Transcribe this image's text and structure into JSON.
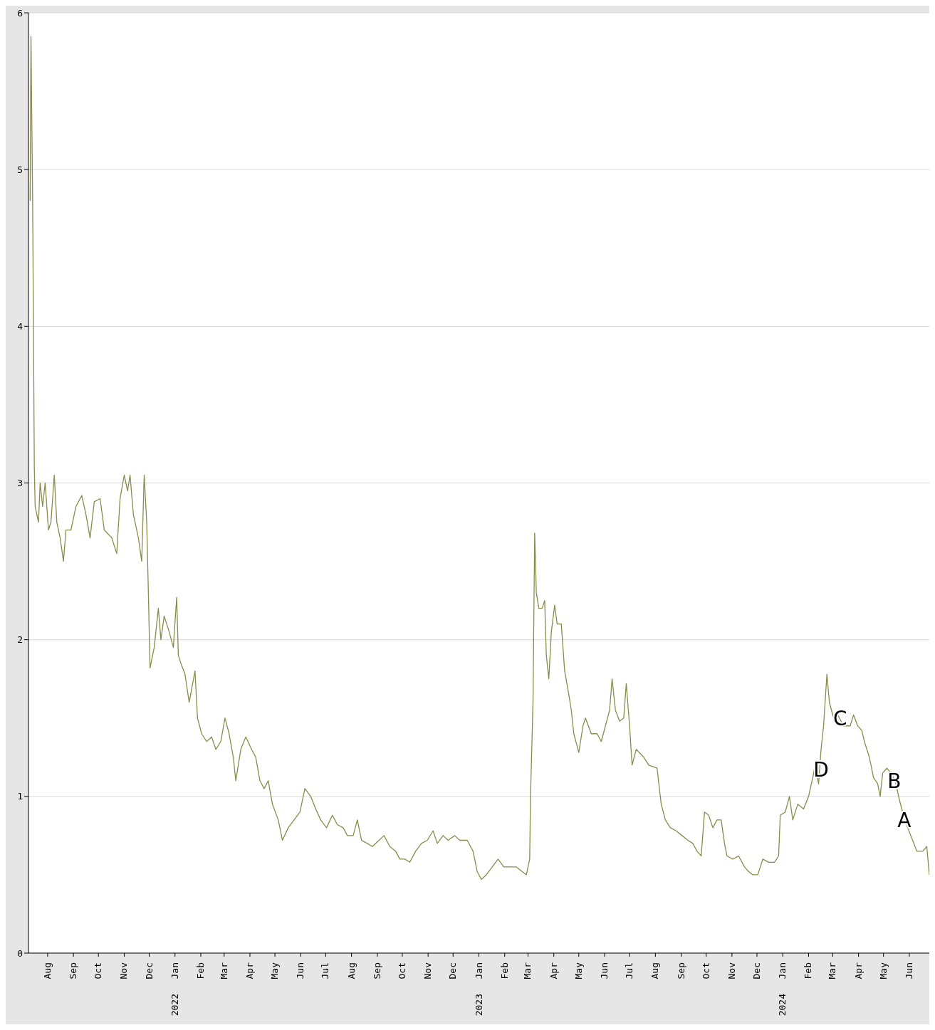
{
  "chart_data": {
    "type": "line",
    "color": "#8b8b4b",
    "grid": "y",
    "marker": "none",
    "line_style": "solid",
    "xlim": [
      "2021-07-09",
      "2024-06-25"
    ],
    "xticks": [
      {
        "value": "2021-08-01",
        "label": "Aug"
      },
      {
        "value": "2021-09-01",
        "label": "Sep"
      },
      {
        "value": "2021-10-01",
        "label": "Oct"
      },
      {
        "value": "2021-11-01",
        "label": "Nov"
      },
      {
        "value": "2021-12-01",
        "label": "Dec"
      },
      {
        "value": "2022-01-01",
        "label": "Jan"
      },
      {
        "value": "2022-02-01",
        "label": "Feb"
      },
      {
        "value": "2022-03-01",
        "label": "Mar"
      },
      {
        "value": "2022-04-01",
        "label": "Apr"
      },
      {
        "value": "2022-05-01",
        "label": "May"
      },
      {
        "value": "2022-06-01",
        "label": "Jun"
      },
      {
        "value": "2022-07-01",
        "label": "Jul"
      },
      {
        "value": "2022-08-01",
        "label": "Aug"
      },
      {
        "value": "2022-09-01",
        "label": "Sep"
      },
      {
        "value": "2022-10-01",
        "label": "Oct"
      },
      {
        "value": "2022-11-01",
        "label": "Nov"
      },
      {
        "value": "2022-12-01",
        "label": "Dec"
      },
      {
        "value": "2023-01-01",
        "label": "Jan"
      },
      {
        "value": "2023-02-01",
        "label": "Feb"
      },
      {
        "value": "2023-03-01",
        "label": "Mar"
      },
      {
        "value": "2023-04-01",
        "label": "Apr"
      },
      {
        "value": "2023-05-01",
        "label": "May"
      },
      {
        "value": "2023-06-01",
        "label": "Jun"
      },
      {
        "value": "2023-07-01",
        "label": "Jul"
      },
      {
        "value": "2023-08-01",
        "label": "Aug"
      },
      {
        "value": "2023-09-01",
        "label": "Sep"
      },
      {
        "value": "2023-10-01",
        "label": "Oct"
      },
      {
        "value": "2023-11-01",
        "label": "Nov"
      },
      {
        "value": "2023-12-01",
        "label": "Dec"
      },
      {
        "value": "2024-01-01",
        "label": "Jan"
      },
      {
        "value": "2024-02-01",
        "label": "Feb"
      },
      {
        "value": "2024-03-01",
        "label": "Mar"
      },
      {
        "value": "2024-04-01",
        "label": "Apr"
      },
      {
        "value": "2024-05-01",
        "label": "May"
      },
      {
        "value": "2024-06-01",
        "label": "Jun"
      }
    ],
    "ylim": [
      0,
      6
    ],
    "yticks": [
      0,
      1,
      2,
      3,
      4,
      5,
      6
    ],
    "x": [
      "2021-07-11",
      "2021-07-12",
      "2021-07-14",
      "2021-07-16",
      "2021-07-17",
      "2021-07-21",
      "2021-07-23",
      "2021-07-26",
      "2021-07-29",
      "2021-08-02",
      "2021-08-05",
      "2021-08-09",
      "2021-08-12",
      "2021-08-16",
      "2021-08-20",
      "2021-08-23",
      "2021-08-29",
      "2021-09-04",
      "2021-09-11",
      "2021-09-16",
      "2021-09-21",
      "2021-09-26",
      "2021-10-03",
      "2021-10-08",
      "2021-10-17",
      "2021-10-23",
      "2021-10-27",
      "2021-11-01",
      "2021-11-05",
      "2021-11-08",
      "2021-11-12",
      "2021-11-18",
      "2021-11-22",
      "2021-11-25",
      "2021-11-28",
      "2021-11-30",
      "2021-12-02",
      "2021-12-07",
      "2021-12-12",
      "2021-12-15",
      "2021-12-19",
      "2021-12-25",
      "2021-12-30",
      "2022-01-03",
      "2022-01-05",
      "2022-01-08",
      "2022-01-13",
      "2022-01-18",
      "2022-01-25",
      "2022-01-28",
      "2022-02-02",
      "2022-02-08",
      "2022-02-14",
      "2022-02-19",
      "2022-02-25",
      "2022-03-02",
      "2022-03-07",
      "2022-03-12",
      "2022-03-15",
      "2022-03-21",
      "2022-03-27",
      "2022-04-03",
      "2022-04-08",
      "2022-04-13",
      "2022-04-18",
      "2022-04-23",
      "2022-04-28",
      "2022-05-05",
      "2022-05-10",
      "2022-05-17",
      "2022-05-24",
      "2022-05-31",
      "2022-06-06",
      "2022-06-13",
      "2022-06-19",
      "2022-06-25",
      "2022-07-02",
      "2022-07-09",
      "2022-07-15",
      "2022-07-22",
      "2022-07-27",
      "2022-08-03",
      "2022-08-08",
      "2022-08-13",
      "2022-08-20",
      "2022-08-26",
      "2022-09-03",
      "2022-09-09",
      "2022-09-16",
      "2022-09-23",
      "2022-09-28",
      "2022-10-04",
      "2022-10-10",
      "2022-10-17",
      "2022-10-24",
      "2022-10-31",
      "2022-11-07",
      "2022-11-12",
      "2022-11-19",
      "2022-11-25",
      "2022-12-03",
      "2022-12-09",
      "2022-12-18",
      "2022-12-25",
      "2022-12-30",
      "2023-01-04",
      "2023-01-10",
      "2023-01-17",
      "2023-01-24",
      "2023-01-31",
      "2023-02-07",
      "2023-02-15",
      "2023-02-22",
      "2023-02-27",
      "2023-03-03",
      "2023-03-04",
      "2023-03-07",
      "2023-03-09",
      "2023-03-11",
      "2023-03-14",
      "2023-03-18",
      "2023-03-21",
      "2023-03-23",
      "2023-03-26",
      "2023-03-29",
      "2023-04-02",
      "2023-04-05",
      "2023-04-10",
      "2023-04-14",
      "2023-04-19",
      "2023-04-22",
      "2023-04-25",
      "2023-05-01",
      "2023-05-06",
      "2023-05-09",
      "2023-05-16",
      "2023-05-23",
      "2023-05-28",
      "2023-06-02",
      "2023-06-07",
      "2023-06-10",
      "2023-06-14",
      "2023-06-19",
      "2023-06-24",
      "2023-06-27",
      "2023-07-01",
      "2023-07-04",
      "2023-07-09",
      "2023-07-18",
      "2023-07-24",
      "2023-08-03",
      "2023-08-08",
      "2023-08-13",
      "2023-08-19",
      "2023-08-26",
      "2023-09-02",
      "2023-09-09",
      "2023-09-15",
      "2023-09-20",
      "2023-09-25",
      "2023-09-29",
      "2023-10-04",
      "2023-10-09",
      "2023-10-14",
      "2023-10-19",
      "2023-10-23",
      "2023-10-26",
      "2023-11-02",
      "2023-11-09",
      "2023-11-16",
      "2023-11-21",
      "2023-11-26",
      "2023-12-02",
      "2023-12-08",
      "2023-12-15",
      "2023-12-22",
      "2023-12-27",
      "2023-12-29",
      "2024-01-04",
      "2024-01-09",
      "2024-01-13",
      "2024-01-19",
      "2024-01-26",
      "2024-02-01",
      "2024-02-06",
      "2024-02-09",
      "2024-02-13",
      "2024-02-16",
      "2024-02-19",
      "2024-02-23",
      "2024-02-26",
      "2024-03-02",
      "2024-03-07",
      "2024-03-14",
      "2024-03-17",
      "2024-03-22",
      "2024-03-26",
      "2024-03-31",
      "2024-04-05",
      "2024-04-08",
      "2024-04-14",
      "2024-04-19",
      "2024-04-24",
      "2024-04-27",
      "2024-04-30",
      "2024-05-05",
      "2024-05-10",
      "2024-05-15",
      "2024-05-20",
      "2024-05-25",
      "2024-05-30",
      "2024-06-05",
      "2024-06-10",
      "2024-06-17",
      "2024-06-22",
      "2024-06-25"
    ],
    "values": [
      4.8,
      5.85,
      4.8,
      3.1,
      2.85,
      2.75,
      3.0,
      2.85,
      3.0,
      2.7,
      2.75,
      3.05,
      2.75,
      2.65,
      2.5,
      2.7,
      2.7,
      2.85,
      2.92,
      2.8,
      2.65,
      2.88,
      2.9,
      2.7,
      2.65,
      2.55,
      2.9,
      3.05,
      2.95,
      3.05,
      2.8,
      2.65,
      2.5,
      3.05,
      2.75,
      2.3,
      1.82,
      1.95,
      2.2,
      2.0,
      2.15,
      2.05,
      1.95,
      2.27,
      1.9,
      1.85,
      1.78,
      1.6,
      1.8,
      1.5,
      1.4,
      1.35,
      1.38,
      1.3,
      1.35,
      1.5,
      1.4,
      1.25,
      1.1,
      1.3,
      1.38,
      1.3,
      1.25,
      1.1,
      1.05,
      1.1,
      0.95,
      0.85,
      0.72,
      0.8,
      0.85,
      0.9,
      1.05,
      1.0,
      0.92,
      0.85,
      0.8,
      0.88,
      0.82,
      0.8,
      0.75,
      0.75,
      0.85,
      0.72,
      0.7,
      0.68,
      0.72,
      0.75,
      0.68,
      0.65,
      0.6,
      0.6,
      0.58,
      0.65,
      0.7,
      0.72,
      0.78,
      0.7,
      0.75,
      0.72,
      0.75,
      0.72,
      0.72,
      0.65,
      0.52,
      0.47,
      0.5,
      0.55,
      0.6,
      0.55,
      0.55,
      0.55,
      0.52,
      0.5,
      0.6,
      1.0,
      1.6,
      2.68,
      2.3,
      2.2,
      2.2,
      2.25,
      1.9,
      1.75,
      2.05,
      2.22,
      2.1,
      2.1,
      1.8,
      1.65,
      1.55,
      1.4,
      1.28,
      1.45,
      1.5,
      1.4,
      1.4,
      1.35,
      1.45,
      1.55,
      1.75,
      1.55,
      1.48,
      1.5,
      1.72,
      1.45,
      1.2,
      1.3,
      1.25,
      1.2,
      1.18,
      0.95,
      0.85,
      0.8,
      0.78,
      0.75,
      0.72,
      0.7,
      0.65,
      0.62,
      0.9,
      0.88,
      0.8,
      0.85,
      0.85,
      0.7,
      0.62,
      0.6,
      0.62,
      0.55,
      0.52,
      0.5,
      0.5,
      0.6,
      0.58,
      0.58,
      0.62,
      0.88,
      0.9,
      1.0,
      0.85,
      0.95,
      0.92,
      1.0,
      1.12,
      1.2,
      1.08,
      1.3,
      1.45,
      1.78,
      1.6,
      1.5,
      1.52,
      1.45,
      1.45,
      1.45,
      1.52,
      1.45,
      1.42,
      1.35,
      1.25,
      1.12,
      1.08,
      1.0,
      1.15,
      1.18,
      1.15,
      1.1,
      0.98,
      0.88,
      0.8,
      0.72,
      0.65,
      0.65,
      0.68,
      0.5
    ],
    "annotations": [
      {
        "text": "D",
        "x": "2024-02-16",
        "y": 1.17
      },
      {
        "text": "C",
        "x": "2024-03-10",
        "y": 1.5
      },
      {
        "text": "B",
        "x": "2024-05-14",
        "y": 1.1
      },
      {
        "text": "A",
        "x": "2024-05-26",
        "y": 0.85
      },
      "2022",
      "2023",
      "2024"
    ]
  }
}
